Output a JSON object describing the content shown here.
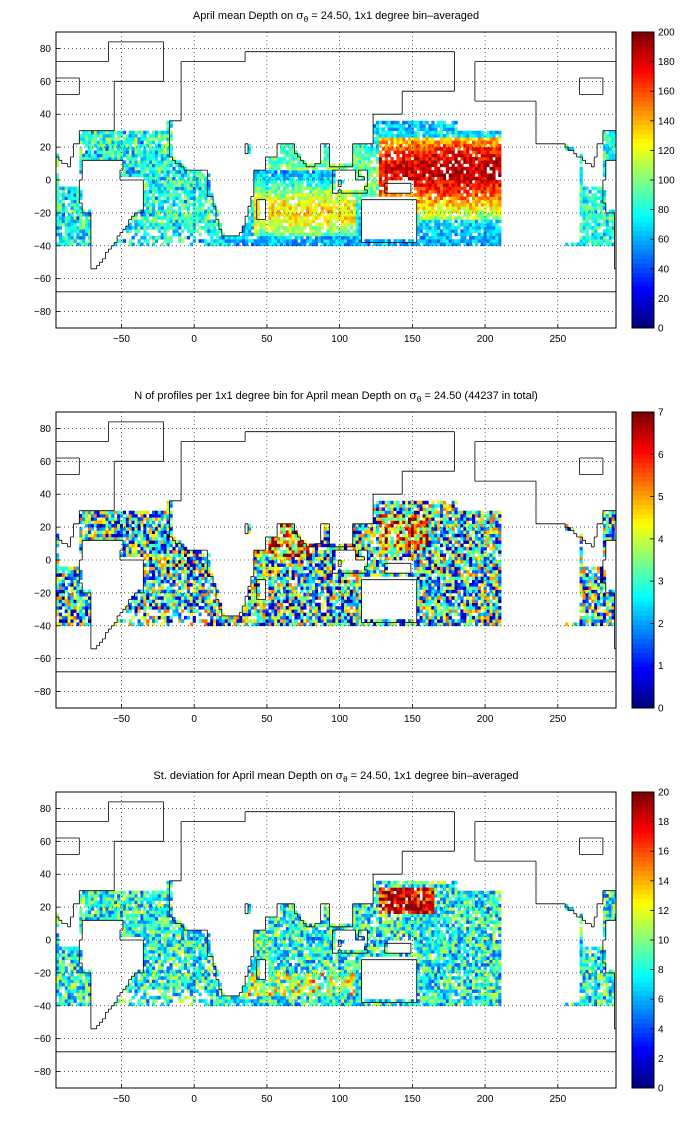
{
  "chart_data": [
    {
      "type": "heatmap",
      "title_pre": "April mean Depth on ",
      "title_post": " = 24.50, 1x1 degree bin–averaged",
      "title_sigma": "σ",
      "title_sub": "θ",
      "xlabel": "",
      "ylabel": "",
      "xlim": [
        -95,
        290
      ],
      "ylim": [
        -90,
        90
      ],
      "xticks": [
        -50,
        0,
        50,
        100,
        150,
        200,
        250
      ],
      "yticks": [
        -80,
        -60,
        -40,
        -20,
        0,
        20,
        40,
        60,
        80
      ],
      "grid": true,
      "colorbar": {
        "min": 0,
        "max": 200,
        "ticks": [
          0,
          20,
          40,
          60,
          80,
          100,
          120,
          140,
          160,
          180,
          200
        ],
        "colormap": "jet"
      },
      "field": "depth"
    },
    {
      "type": "heatmap",
      "title_pre": "N of profiles per 1x1 degree bin for April mean Depth on ",
      "title_post": " = 24.50 (44237 in total)",
      "title_sigma": "σ",
      "title_sub": "θ",
      "xlabel": "",
      "ylabel": "",
      "xlim": [
        -95,
        290
      ],
      "ylim": [
        -90,
        90
      ],
      "xticks": [
        -50,
        0,
        50,
        100,
        150,
        200,
        250
      ],
      "yticks": [
        -80,
        -60,
        -40,
        -20,
        0,
        20,
        40,
        60,
        80
      ],
      "grid": true,
      "total_profiles": 44237,
      "colorbar": {
        "min": 0,
        "max": 7,
        "ticks": [
          0,
          1,
          2,
          3,
          4,
          5,
          6,
          7
        ],
        "colormap": "jet"
      },
      "field": "count"
    },
    {
      "type": "heatmap",
      "title_pre": "St. deviation for April mean Depth on ",
      "title_post": " = 24.50, 1x1 degree bin–averaged",
      "title_sigma": "σ",
      "title_sub": "θ",
      "xlabel": "",
      "ylabel": "",
      "xlim": [
        -95,
        290
      ],
      "ylim": [
        -90,
        90
      ],
      "xticks": [
        -50,
        0,
        50,
        100,
        150,
        200,
        250
      ],
      "yticks": [
        -80,
        -60,
        -40,
        -20,
        0,
        20,
        40,
        60,
        80
      ],
      "grid": true,
      "colorbar": {
        "min": 0,
        "max": 20,
        "ticks": [
          0,
          2,
          4,
          6,
          8,
          10,
          12,
          14,
          16,
          18,
          20
        ],
        "colormap": "jet"
      },
      "field": "std"
    }
  ]
}
